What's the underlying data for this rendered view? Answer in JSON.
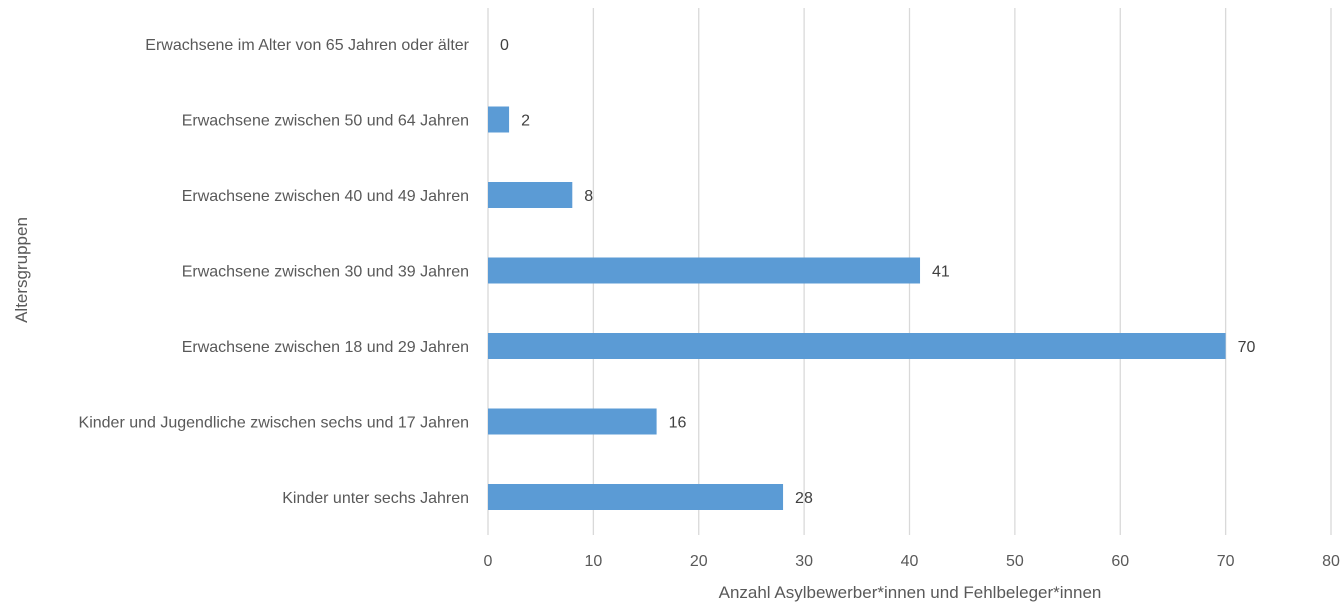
{
  "chart_data": {
    "type": "bar",
    "orientation": "horizontal",
    "categories": [
      "Erwachsene im Alter von 65 Jahren oder älter",
      "Erwachsene zwischen 50 und 64 Jahren",
      "Erwachsene zwischen 40 und 49 Jahren",
      "Erwachsene zwischen 30 und 39 Jahren",
      "Erwachsene zwischen 18 und 29 Jahren",
      "Kinder und Jugendliche zwischen sechs und 17 Jahren",
      "Kinder unter sechs Jahren"
    ],
    "values": [
      0,
      2,
      8,
      41,
      70,
      16,
      28
    ],
    "xlabel": "Anzahl Asylbewerber*innen und Fehlbeleger*innen",
    "ylabel": "Altersgruppen",
    "xlim": [
      0,
      80
    ],
    "xticks": [
      0,
      10,
      20,
      30,
      40,
      50,
      60,
      70,
      80
    ],
    "grid": "vertical",
    "bar_color": "#5b9bd5",
    "data_labels": true
  }
}
